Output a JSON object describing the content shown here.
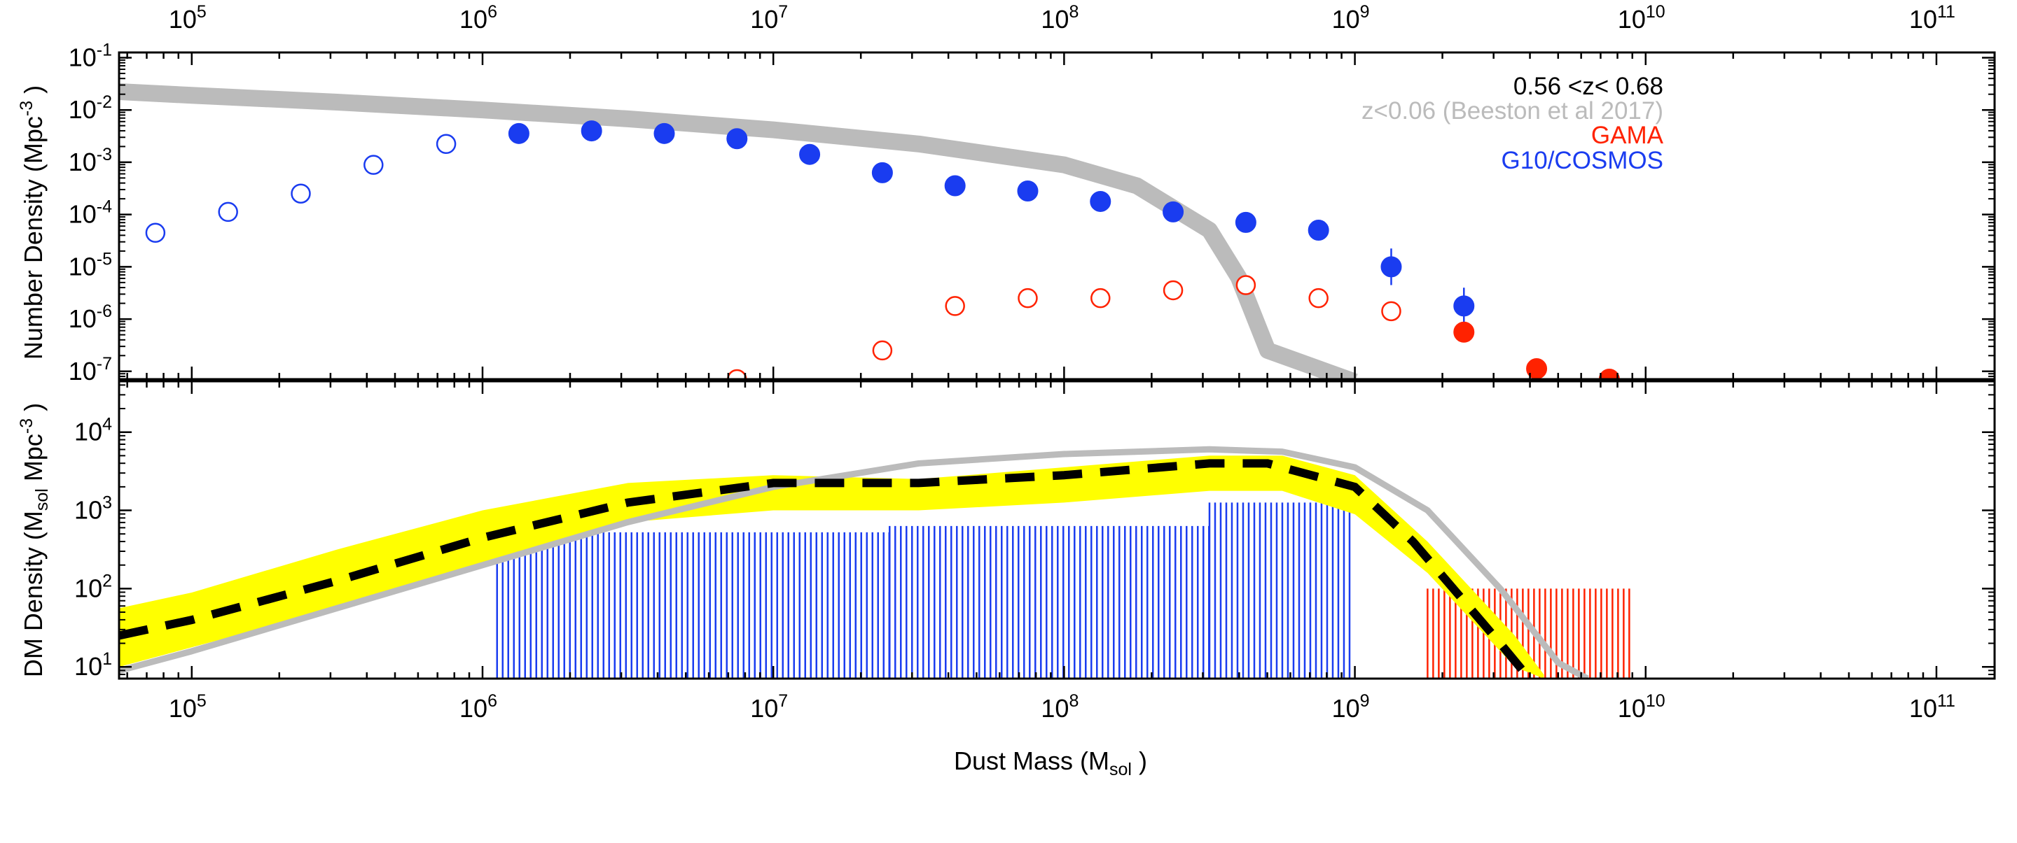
{
  "chart_data": {
    "type": "scatter",
    "xaxis": {
      "label": "Dust Mass (M",
      "label_sub": "sol",
      "label_end": " )",
      "range_log10": [
        4.75,
        11.2
      ],
      "major_ticks": [
        {
          "base": "10",
          "exp": "5"
        },
        {
          "base": "10",
          "exp": "6"
        },
        {
          "base": "10",
          "exp": "7"
        },
        {
          "base": "10",
          "exp": "8"
        },
        {
          "base": "10",
          "exp": "9"
        },
        {
          "base": "10",
          "exp": "10"
        },
        {
          "base": "10",
          "exp": "11"
        }
      ],
      "scale": "log"
    },
    "top_panel": {
      "ylabel": "Number Density (Mpc",
      "ylabel_sup": "-3",
      "ylabel_end": " )",
      "yrange_log10": [
        -7.15,
        -0.9
      ],
      "yticks": [
        {
          "base": "10",
          "exp": "-1"
        },
        {
          "base": "10",
          "exp": "-2"
        },
        {
          "base": "10",
          "exp": "-3"
        },
        {
          "base": "10",
          "exp": "-4"
        },
        {
          "base": "10",
          "exp": "-5"
        },
        {
          "base": "10",
          "exp": "-6"
        },
        {
          "base": "10",
          "exp": "-7"
        }
      ],
      "legend": [
        {
          "text": "0.56 <z< 0.68",
          "color": "#000000"
        },
        {
          "text": "z<0.06 (Beeston et al 2017)",
          "color": "#bbbbbb"
        },
        {
          "text": "GAMA",
          "color": "#ff2200"
        },
        {
          "text": "G10/COSMOS",
          "color": "#1a3cf0"
        }
      ],
      "series": [
        {
          "name": "G10/COSMOS (filled)",
          "color": "#1a3cf0",
          "marker": "filled-circle",
          "x_log10": [
            6.125,
            6.375,
            6.625,
            6.875,
            7.125,
            7.375,
            7.625,
            7.875,
            8.125,
            8.375,
            8.625,
            8.875,
            9.125,
            9.375
          ],
          "y_log10": [
            -2.45,
            -2.4,
            -2.45,
            -2.55,
            -2.85,
            -3.2,
            -3.45,
            -3.55,
            -3.75,
            -3.95,
            -4.15,
            -4.3,
            -5.0,
            -5.75
          ],
          "err_log10": [
            0,
            0,
            0,
            0,
            0,
            0,
            0,
            0,
            0,
            0,
            0,
            0.12,
            0.35,
            0.35
          ]
        },
        {
          "name": "G10/COSMOS (open)",
          "color": "#1a3cf0",
          "marker": "open-circle",
          "x_log10": [
            4.875,
            5.125,
            5.375,
            5.625,
            5.875
          ],
          "y_log10": [
            -4.35,
            -3.95,
            -3.6,
            -3.05,
            -2.65
          ]
        },
        {
          "name": "GAMA (open)",
          "color": "#ff2200",
          "marker": "open-circle",
          "x_log10": [
            6.875,
            7.375,
            7.625,
            7.875,
            8.125,
            8.375,
            8.625,
            8.875,
            9.125
          ],
          "y_log10": [
            -7.15,
            -6.6,
            -5.75,
            -5.6,
            -5.6,
            -5.45,
            -5.35,
            -5.6,
            -5.85
          ]
        },
        {
          "name": "GAMA (filled)",
          "color": "#ff2200",
          "marker": "filled-circle",
          "x_log10": [
            9.375,
            9.625,
            9.875
          ],
          "y_log10": [
            -6.25,
            -6.95,
            -7.15
          ]
        },
        {
          "name": "Beeston et al 2017 fit",
          "color": "#bbbbbb",
          "marker": "line",
          "x_log10": [
            4.75,
            5.0,
            5.5,
            6.0,
            6.5,
            7.0,
            7.5,
            8.0,
            8.25,
            8.5,
            8.6,
            8.7,
            9.0
          ],
          "y_log10": [
            -1.65,
            -1.72,
            -1.85,
            -2.0,
            -2.17,
            -2.38,
            -2.65,
            -3.05,
            -3.45,
            -4.3,
            -5.2,
            -6.6,
            -7.2
          ]
        }
      ]
    },
    "bottom_panel": {
      "ylabel": "DM Density (M",
      "ylabel_sub": "sol",
      "ylabel_mid": " Mpc",
      "ylabel_sup": "-3",
      "ylabel_end": " )",
      "yrange_log10": [
        0.85,
        4.65
      ],
      "yticks": [
        {
          "base": "10",
          "exp": "1"
        },
        {
          "base": "10",
          "exp": "2"
        },
        {
          "base": "10",
          "exp": "3"
        },
        {
          "base": "10",
          "exp": "4"
        }
      ],
      "series": [
        {
          "name": "Fit uncertainty band",
          "color": "#ffff00",
          "x_log10": [
            4.75,
            5.0,
            5.5,
            6.0,
            6.5,
            7.0,
            7.5,
            8.0,
            8.5,
            8.75,
            9.0,
            9.25,
            9.4,
            9.55,
            9.65
          ],
          "upper_log10": [
            1.75,
            1.95,
            2.5,
            3.0,
            3.35,
            3.45,
            3.4,
            3.55,
            3.7,
            3.7,
            3.45,
            2.6,
            2.0,
            1.4,
            0.9
          ],
          "lower_log10": [
            1.0,
            1.25,
            1.75,
            2.3,
            2.85,
            3.0,
            3.0,
            3.1,
            3.25,
            3.25,
            2.95,
            2.2,
            1.6,
            1.0,
            0.85
          ]
        },
        {
          "name": "Beeston et al 2017 (dust mass density)",
          "color": "#bbbbbb",
          "x_log10": [
            4.75,
            5.0,
            5.5,
            6.0,
            6.5,
            7.0,
            7.5,
            8.0,
            8.5,
            8.75,
            9.0,
            9.25,
            9.5,
            9.7,
            9.8
          ],
          "y_log10": [
            0.95,
            1.2,
            1.75,
            2.3,
            2.85,
            3.3,
            3.6,
            3.72,
            3.78,
            3.75,
            3.55,
            3.0,
            2.0,
            1.05,
            0.85
          ]
        },
        {
          "name": "Best fit",
          "color": "#000000",
          "x_log10": [
            4.75,
            5.0,
            5.5,
            6.0,
            6.5,
            7.0,
            7.5,
            8.0,
            8.5,
            8.7,
            9.0,
            9.2,
            9.35,
            9.5,
            9.6
          ],
          "y_log10": [
            1.4,
            1.6,
            2.1,
            2.65,
            3.1,
            3.35,
            3.35,
            3.45,
            3.6,
            3.6,
            3.3,
            2.6,
            1.95,
            1.3,
            0.85
          ]
        }
      ],
      "bars": [
        {
          "color": "#1a3cf0",
          "x_range_log10": [
            6.05,
            7.4
          ],
          "y_log10": 2.72
        },
        {
          "color": "#1a3cf0",
          "x_range_log10": [
            7.4,
            8.5
          ],
          "y_log10": 2.8
        },
        {
          "color": "#1a3cf0",
          "x_range_log10": [
            8.5,
            9.0
          ],
          "y_log10": 3.1
        },
        {
          "color": "#ff2200",
          "x_range_log10": [
            9.25,
            9.95
          ],
          "y_log10": 2.0
        }
      ]
    }
  }
}
